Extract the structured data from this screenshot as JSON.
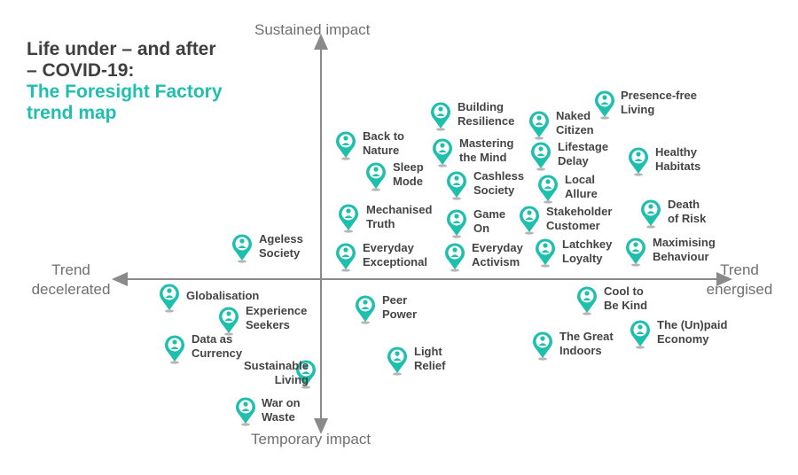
{
  "title": {
    "line1": "Life under – and after – COVID-19:",
    "line2": "The Foresight Factory trend map"
  },
  "axes": {
    "top": "Sustained impact",
    "bottom": "Temporary impact",
    "left": [
      "Trend",
      "decelerated"
    ],
    "right": [
      "Trend",
      "energised"
    ]
  },
  "colors": {
    "marker": "#1fbfae",
    "axis": "#8a8a8a",
    "text": "#444444"
  },
  "trends": [
    {
      "label": "Presence-free\nLiving",
      "quadrant": "upper-right"
    },
    {
      "label": "Building\nResilience",
      "quadrant": "upper-right"
    },
    {
      "label": "Naked\nCitizen",
      "quadrant": "upper-right"
    },
    {
      "label": "Back to\nNature",
      "quadrant": "upper-right"
    },
    {
      "label": "Mastering\nthe Mind",
      "quadrant": "upper-right"
    },
    {
      "label": "Lifestage\nDelay",
      "quadrant": "upper-right"
    },
    {
      "label": "Healthy\nHabitats",
      "quadrant": "upper-right"
    },
    {
      "label": "Sleep\nMode",
      "quadrant": "upper-right"
    },
    {
      "label": "Cashless\nSociety",
      "quadrant": "upper-right"
    },
    {
      "label": "Local\nAllure",
      "quadrant": "upper-right"
    },
    {
      "label": "Death\nof Risk",
      "quadrant": "upper-right"
    },
    {
      "label": "Mechanised\nTruth",
      "quadrant": "upper-right"
    },
    {
      "label": "Game\nOn",
      "quadrant": "upper-right"
    },
    {
      "label": "Stakeholder\nCustomer",
      "quadrant": "upper-right"
    },
    {
      "label": "Ageless\nSociety",
      "quadrant": "upper-left"
    },
    {
      "label": "Everyday\nExceptional",
      "quadrant": "upper-right"
    },
    {
      "label": "Everyday\nActivism",
      "quadrant": "upper-right"
    },
    {
      "label": "Latchkey\nLoyalty",
      "quadrant": "upper-right"
    },
    {
      "label": "Maximising\nBehaviour",
      "quadrant": "upper-right"
    },
    {
      "label": "Globalisation",
      "quadrant": "lower-left"
    },
    {
      "label": "Experience\nSeekers",
      "quadrant": "lower-left"
    },
    {
      "label": "Peer\nPower",
      "quadrant": "lower-right"
    },
    {
      "label": "Cool to\nBe Kind",
      "quadrant": "lower-right"
    },
    {
      "label": "Data as\nCurrency",
      "quadrant": "lower-left"
    },
    {
      "label": "The (Un)paid\nEconomy",
      "quadrant": "lower-right"
    },
    {
      "label": "The Great\nIndoors",
      "quadrant": "lower-right"
    },
    {
      "label": "Light\nRelief",
      "quadrant": "lower-right"
    },
    {
      "label": "Sustainable\nLiving",
      "quadrant": "lower-left"
    },
    {
      "label": "War on\nWaste",
      "quadrant": "lower-left"
    }
  ]
}
